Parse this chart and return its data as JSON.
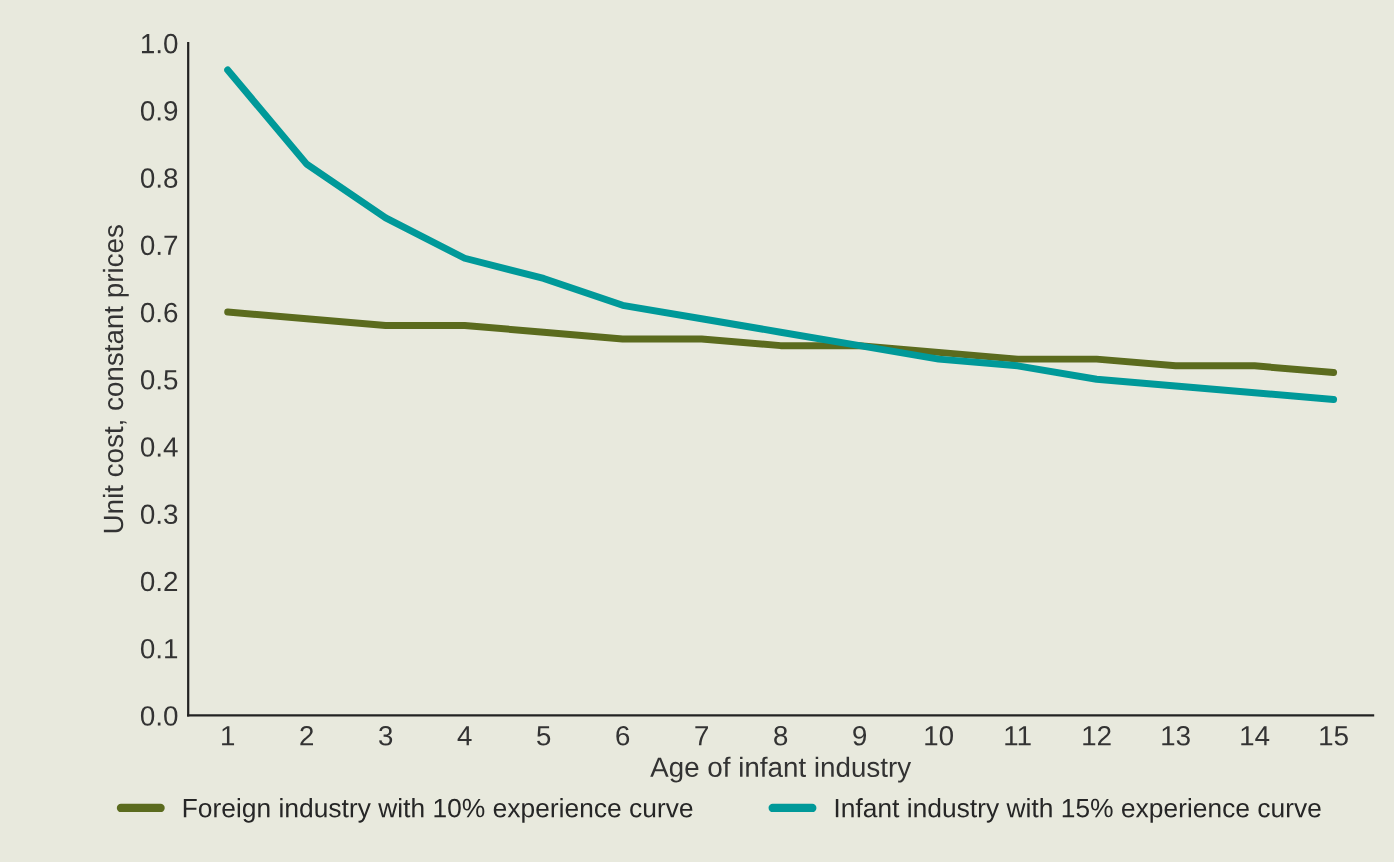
{
  "chart_data": {
    "type": "line",
    "xlabel": "Age of infant industry",
    "ylabel": "Unit cost, constant prices",
    "categories": [
      "1",
      "2",
      "3",
      "4",
      "5",
      "6",
      "7",
      "8",
      "9",
      "10",
      "11",
      "12",
      "13",
      "14",
      "15"
    ],
    "series": [
      {
        "name": "Foreign industry with 10% experience curve",
        "color": "#5b6b1e",
        "values": [
          0.6,
          0.59,
          0.58,
          0.58,
          0.57,
          0.56,
          0.56,
          0.55,
          0.55,
          0.54,
          0.53,
          0.53,
          0.52,
          0.52,
          0.51
        ]
      },
      {
        "name": "Infant industry with 15% experience curve",
        "color": "#009999",
        "values": [
          0.96,
          0.82,
          0.74,
          0.68,
          0.65,
          0.61,
          0.59,
          0.57,
          0.55,
          0.53,
          0.52,
          0.5,
          0.49,
          0.48,
          0.47
        ]
      }
    ],
    "ylim": [
      0,
      1.0
    ],
    "yticks": [
      {
        "value": 0,
        "label": "0.0"
      },
      {
        "value": 0.1,
        "label": "0.1"
      },
      {
        "value": 0.2,
        "label": "0.2"
      },
      {
        "value": 0.3,
        "label": "0.3"
      },
      {
        "value": 0.4,
        "label": "0.4"
      },
      {
        "value": 0.5,
        "label": "0.5"
      },
      {
        "value": 0.6,
        "label": "0.6"
      },
      {
        "value": 0.7,
        "label": "0.7"
      },
      {
        "value": 0.8,
        "label": "0.8"
      },
      {
        "value": 0.9,
        "label": "0.9"
      },
      {
        "value": 1.0,
        "label": "1.0"
      }
    ],
    "grid": false,
    "legend": "bottom",
    "marker": "none",
    "line_style": "solid"
  }
}
